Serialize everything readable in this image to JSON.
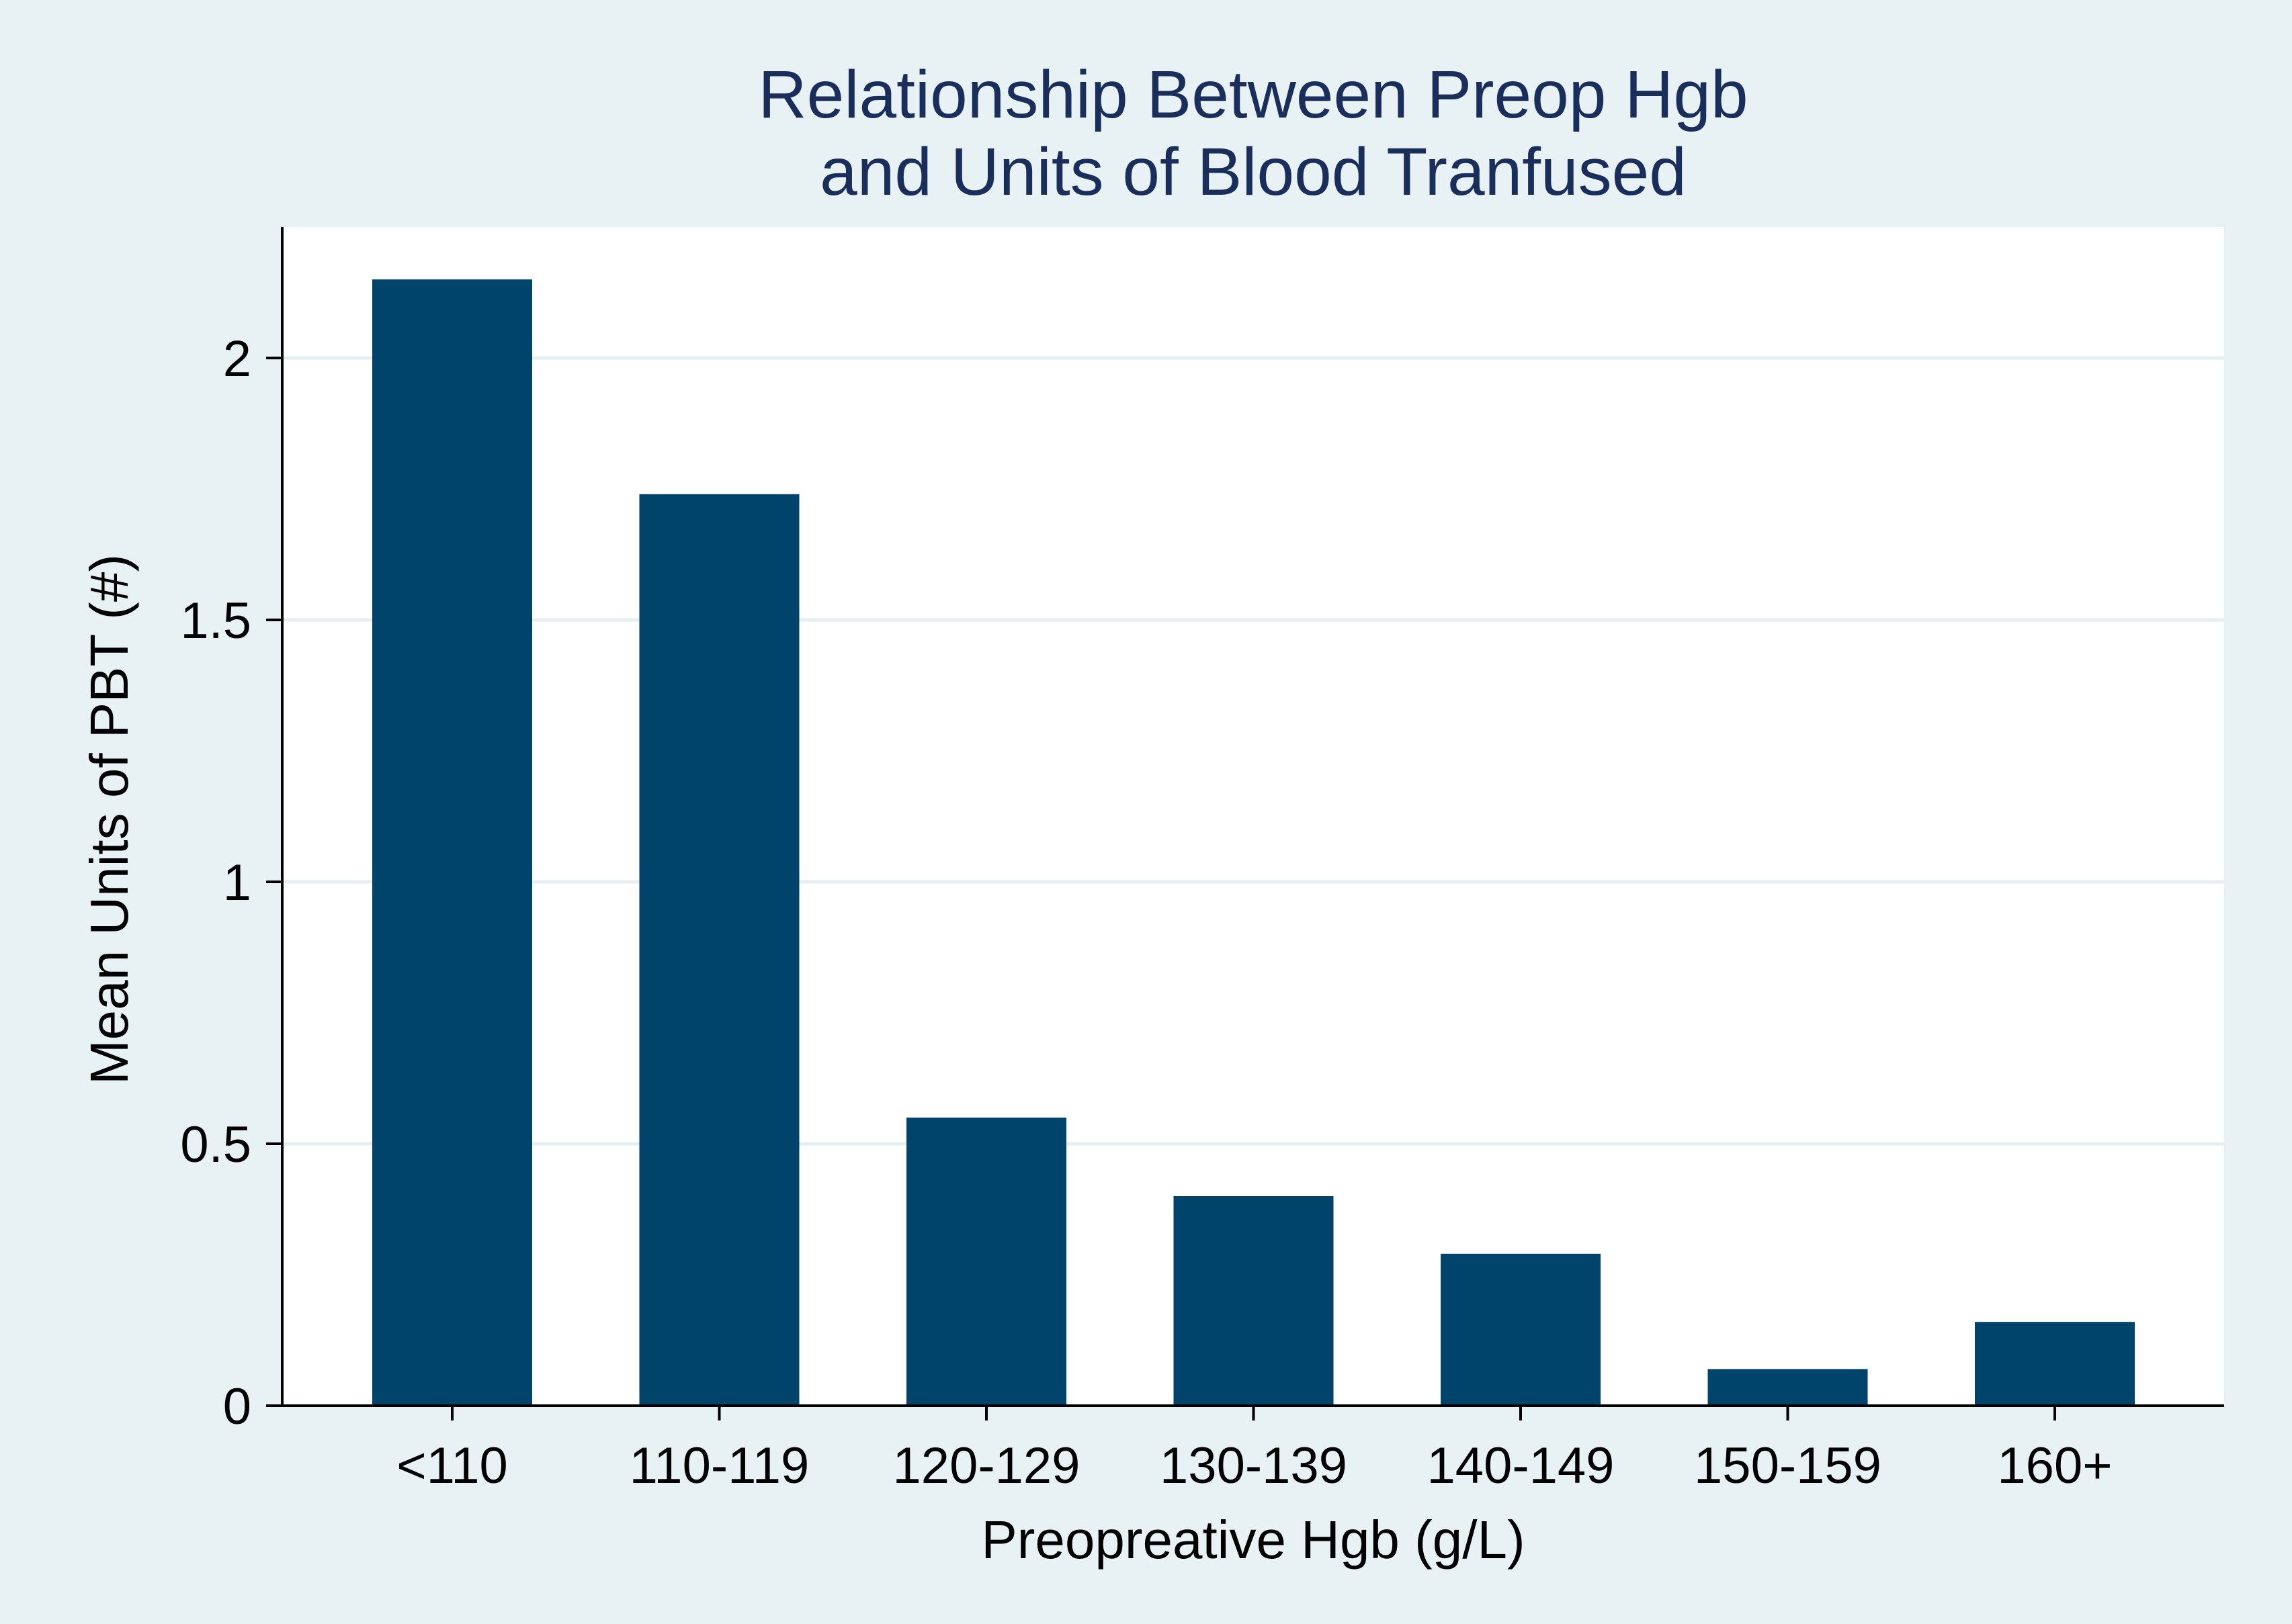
{
  "colors": {
    "outer_background": "#e8f1f4",
    "plot_background": "#ffffff",
    "bar": "#00436b",
    "gridline": "#e6eef2",
    "title": "#1a2e5c",
    "axis": "#000000"
  },
  "chart_data": {
    "type": "bar",
    "title": "Relationship Between Preop Hgb",
    "subtitle": "and Units of Blood Tranfused",
    "xlabel": "Preopreative Hgb (g/L)",
    "ylabel": "Mean Units of PBT (#)",
    "categories": [
      "<110",
      "110-119",
      "120-129",
      "130-139",
      "140-149",
      "150-159",
      "160+"
    ],
    "values": [
      2.15,
      1.74,
      0.55,
      0.4,
      0.29,
      0.07,
      0.16
    ],
    "ylim": [
      0,
      2.25
    ],
    "yticks": [
      0,
      0.5,
      1,
      1.5,
      2
    ],
    "ytick_labels": [
      "0",
      "0.5",
      "1",
      "1.5",
      "2"
    ],
    "grid": true,
    "legend": "none"
  }
}
